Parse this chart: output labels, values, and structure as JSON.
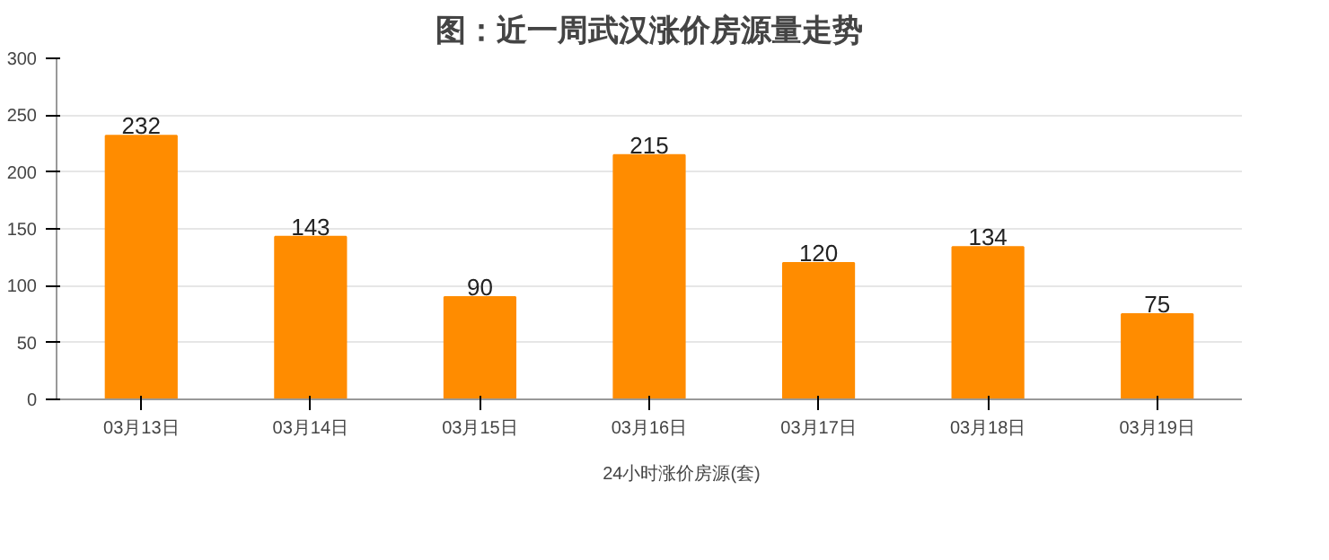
{
  "chart_data": {
    "type": "bar",
    "title": "图：近一周武汉涨价房源量走势",
    "categories": [
      "03月13日",
      "03月14日",
      "03月15日",
      "03月16日",
      "03月17日",
      "03月18日",
      "03月19日"
    ],
    "series": [
      {
        "name": "24小时涨价房源(套)",
        "color": "#ff8c00",
        "values": [
          232,
          143,
          90,
          215,
          120,
          134,
          75
        ]
      }
    ],
    "ylim": [
      0,
      300
    ],
    "yticks": [
      0,
      50,
      100,
      150,
      200,
      250,
      300
    ],
    "grid": "y",
    "legend": "bottom",
    "data_labels": true
  }
}
